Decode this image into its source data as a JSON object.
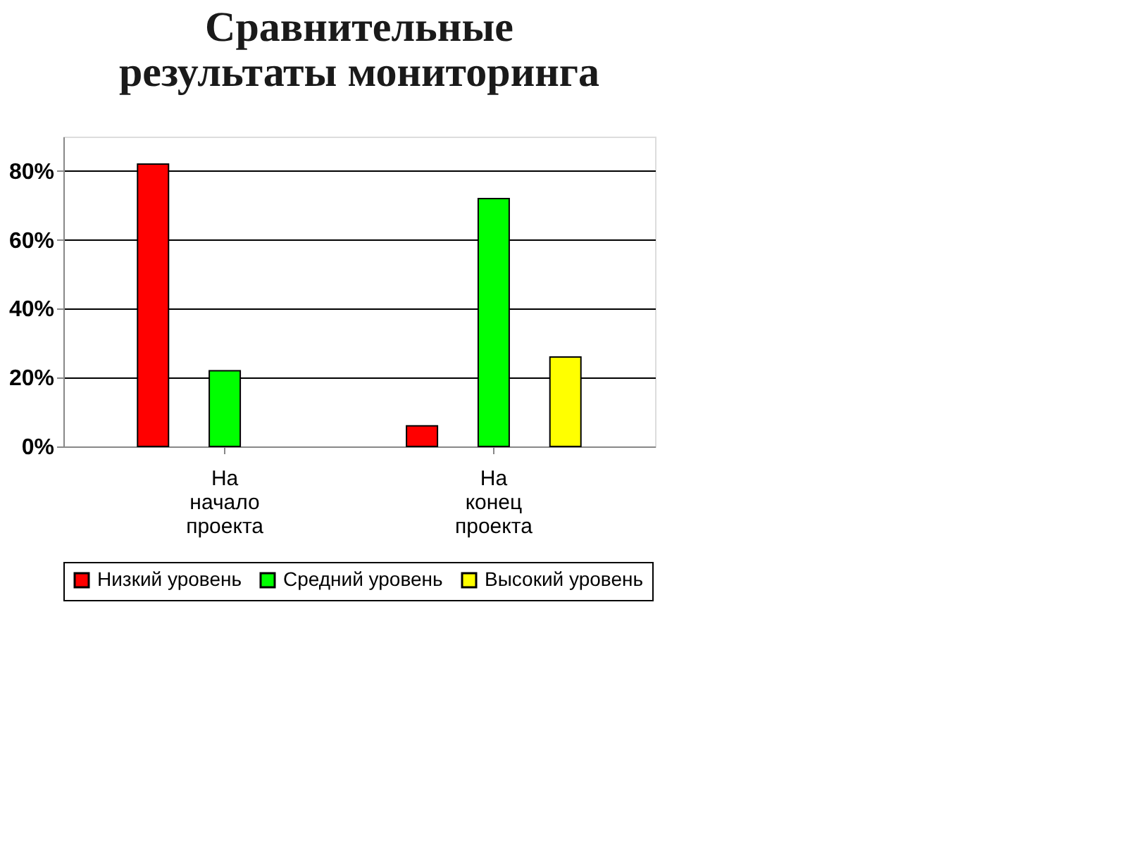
{
  "chart_data": {
    "type": "bar",
    "title": "Сравнительные результаты мониторинга",
    "categories": [
      "На начало проекта",
      "На конец проекта"
    ],
    "series": [
      {
        "name": "Низкий уровень",
        "color": "#ff0000",
        "values": [
          82,
          6
        ]
      },
      {
        "name": "Средний уровень",
        "color": "#00ff00",
        "values": [
          22,
          72
        ]
      },
      {
        "name": "Высокий уровень",
        "color": "#ffff00",
        "values": [
          null,
          26
        ]
      }
    ],
    "ylim": [
      0,
      90
    ],
    "yticks": [
      {
        "value": 0,
        "label": "0%"
      },
      {
        "value": 20,
        "label": "20%"
      },
      {
        "value": 40,
        "label": "40%"
      },
      {
        "value": 60,
        "label": "60%"
      },
      {
        "value": 80,
        "label": "80%"
      }
    ],
    "grid": "y",
    "legend": "bottom"
  }
}
